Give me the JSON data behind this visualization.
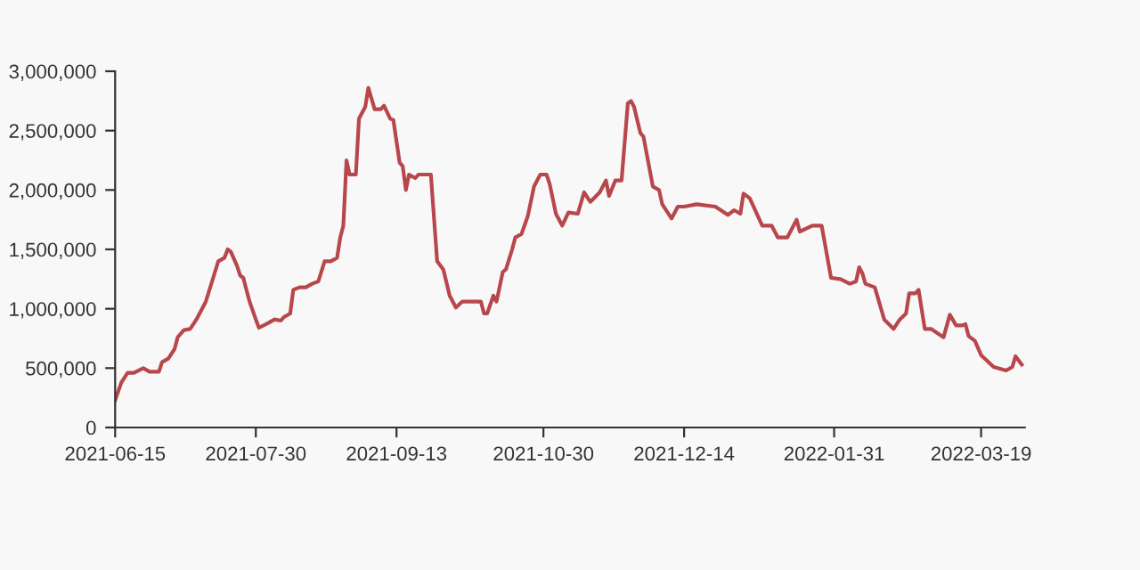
{
  "chart_data": {
    "type": "line",
    "color": "#b8474c",
    "marker": "none",
    "line_style": "solid",
    "grid": false,
    "xlim": [
      "2021-06-15",
      "2022-04-02"
    ],
    "xticks": [
      {
        "value": "2021-06-15",
        "label": "2021-06-15"
      },
      {
        "value": "2021-07-30",
        "label": "2021-07-30"
      },
      {
        "value": "2021-09-13",
        "label": "2021-09-13"
      },
      {
        "value": "2021-10-30",
        "label": "2021-10-30"
      },
      {
        "value": "2021-12-14",
        "label": "2021-12-14"
      },
      {
        "value": "2022-01-31",
        "label": "2022-01-31"
      },
      {
        "value": "2022-03-19",
        "label": "2022-03-19"
      }
    ],
    "ylim": [
      0,
      3000000
    ],
    "yticks": [
      {
        "value": 0,
        "label": "0"
      },
      {
        "value": 500000,
        "label": "500,000"
      },
      {
        "value": 1000000,
        "label": "1,000,000"
      },
      {
        "value": 1500000,
        "label": "1,500,000"
      },
      {
        "value": 2000000,
        "label": "2,000,000"
      },
      {
        "value": 2500000,
        "label": "2,500,000"
      },
      {
        "value": 3000000,
        "label": "3,000,000"
      }
    ],
    "x": [
      "2021-06-15",
      "2021-06-17",
      "2021-06-19",
      "2021-06-21",
      "2021-06-24",
      "2021-06-26",
      "2021-06-29",
      "2021-06-30",
      "2021-07-02",
      "2021-07-04",
      "2021-07-05",
      "2021-07-07",
      "2021-07-09",
      "2021-07-11",
      "2021-07-14",
      "2021-07-16",
      "2021-07-18",
      "2021-07-20",
      "2021-07-21",
      "2021-07-22",
      "2021-07-24",
      "2021-07-25",
      "2021-07-26",
      "2021-07-28",
      "2021-07-30",
      "2021-07-31",
      "2021-08-03",
      "2021-08-05",
      "2021-08-07",
      "2021-08-08",
      "2021-08-10",
      "2021-08-11",
      "2021-08-13",
      "2021-08-15",
      "2021-08-17",
      "2021-08-19",
      "2021-08-21",
      "2021-08-23",
      "2021-08-25",
      "2021-08-26",
      "2021-08-27",
      "2021-08-28",
      "2021-08-29",
      "2021-08-31",
      "2021-09-01",
      "2021-09-03",
      "2021-09-04",
      "2021-09-06",
      "2021-09-08",
      "2021-09-09",
      "2021-09-11",
      "2021-09-12",
      "2021-09-14",
      "2021-09-15",
      "2021-09-16",
      "2021-09-17",
      "2021-09-19",
      "2021-09-20",
      "2021-09-24",
      "2021-09-26",
      "2021-09-28",
      "2021-09-30",
      "2021-10-02",
      "2021-10-04",
      "2021-10-08",
      "2021-10-10",
      "2021-10-11",
      "2021-10-12",
      "2021-10-14",
      "2021-10-15",
      "2021-10-17",
      "2021-10-18",
      "2021-10-20",
      "2021-10-21",
      "2021-10-23",
      "2021-10-25",
      "2021-10-27",
      "2021-10-29",
      "2021-10-31",
      "2021-11-01",
      "2021-11-03",
      "2021-11-05",
      "2021-11-07",
      "2021-11-10",
      "2021-11-12",
      "2021-11-14",
      "2021-11-17",
      "2021-11-19",
      "2021-11-20",
      "2021-11-22",
      "2021-11-24",
      "2021-11-26",
      "2021-11-27",
      "2021-11-28",
      "2021-11-30",
      "2021-12-01",
      "2021-12-04",
      "2021-12-06",
      "2021-12-07",
      "2021-12-10",
      "2021-12-12",
      "2021-12-14",
      "2021-12-18",
      "2021-12-24",
      "2021-12-28",
      "2021-12-30",
      "2022-01-01",
      "2022-01-02",
      "2022-01-04",
      "2022-01-08",
      "2022-01-11",
      "2022-01-13",
      "2022-01-16",
      "2022-01-19",
      "2022-01-20",
      "2022-01-24",
      "2022-01-27",
      "2022-01-30",
      "2022-02-02",
      "2022-02-05",
      "2022-02-07",
      "2022-02-08",
      "2022-02-09",
      "2022-02-10",
      "2022-02-13",
      "2022-02-16",
      "2022-02-19",
      "2022-02-21",
      "2022-02-23",
      "2022-02-24",
      "2022-02-26",
      "2022-02-27",
      "2022-03-01",
      "2022-03-03",
      "2022-03-07",
      "2022-03-09",
      "2022-03-11",
      "2022-03-13",
      "2022-03-14",
      "2022-03-15",
      "2022-03-17",
      "2022-03-19",
      "2022-03-23",
      "2022-03-27",
      "2022-03-29",
      "2022-03-30",
      "2022-04-01"
    ],
    "values": [
      230000,
      380000,
      460000,
      460000,
      500000,
      470000,
      470000,
      550000,
      580000,
      660000,
      760000,
      820000,
      830000,
      910000,
      1060000,
      1230000,
      1400000,
      1430000,
      1500000,
      1480000,
      1360000,
      1280000,
      1260000,
      1060000,
      910000,
      840000,
      880000,
      910000,
      900000,
      930000,
      960000,
      1160000,
      1180000,
      1180000,
      1210000,
      1230000,
      1400000,
      1400000,
      1430000,
      1600000,
      1700000,
      2250000,
      2130000,
      2130000,
      2600000,
      2700000,
      2860000,
      2680000,
      2680000,
      2710000,
      2600000,
      2590000,
      2230000,
      2200000,
      2000000,
      2130000,
      2100000,
      2130000,
      2130000,
      1400000,
      1330000,
      1110000,
      1010000,
      1060000,
      1060000,
      1060000,
      960000,
      960000,
      1110000,
      1060000,
      1310000,
      1330000,
      1500000,
      1600000,
      1630000,
      1780000,
      2030000,
      2130000,
      2130000,
      2050000,
      1800000,
      1700000,
      1810000,
      1800000,
      1980000,
      1900000,
      1980000,
      2080000,
      1950000,
      2080000,
      2080000,
      2730000,
      2750000,
      2700000,
      2480000,
      2450000,
      2030000,
      2000000,
      1880000,
      1760000,
      1860000,
      1860000,
      1880000,
      1860000,
      1790000,
      1830000,
      1800000,
      1970000,
      1930000,
      1700000,
      1700000,
      1600000,
      1600000,
      1750000,
      1650000,
      1700000,
      1700000,
      1260000,
      1250000,
      1210000,
      1230000,
      1350000,
      1300000,
      1210000,
      1180000,
      910000,
      830000,
      910000,
      960000,
      1130000,
      1130000,
      1160000,
      830000,
      830000,
      760000,
      950000,
      860000,
      860000,
      870000,
      770000,
      730000,
      610000,
      510000,
      480000,
      510000,
      600000,
      530000
    ]
  }
}
